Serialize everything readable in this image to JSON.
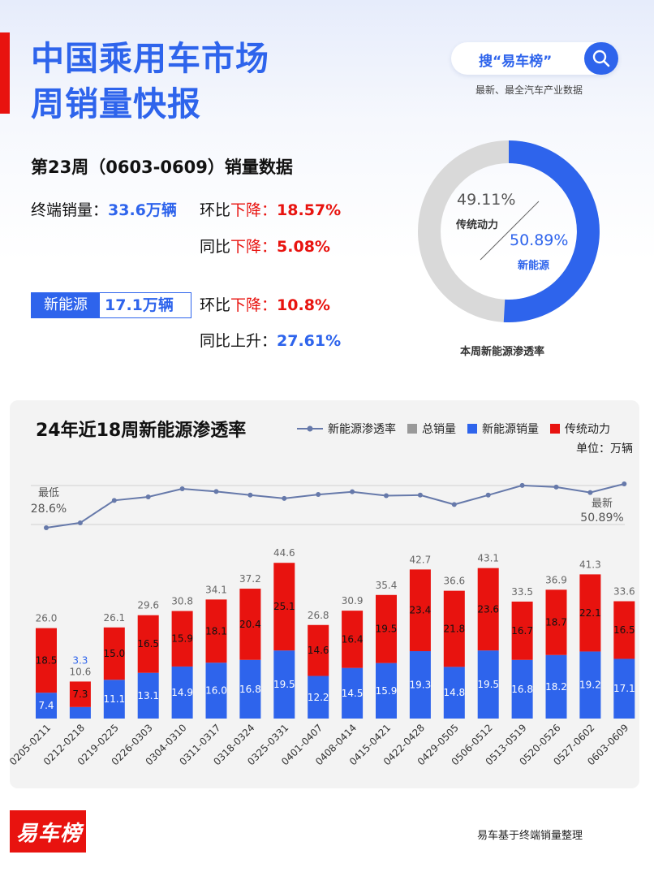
{
  "header": {
    "title_line1": "中国乘用车市场",
    "title_line2": "周销量快报",
    "search_text": "搜“易车榜”",
    "search_icon": "search-icon",
    "tagline": "最新、最全汽车产业数据"
  },
  "summary": {
    "week_title": "第23周（0603-0609）销量数据",
    "total_label": "终端销量：",
    "total_value": "33.6万辆",
    "total_mom_label": "环比",
    "total_mom_dir": "下降：",
    "total_mom_value": "18.57%",
    "total_yoy_label": "同比",
    "total_yoy_dir": "下降：",
    "total_yoy_value": "5.08%",
    "nev_label": "新能源",
    "nev_value": "17.1万辆",
    "nev_mom_label": "环比",
    "nev_mom_dir": "下降：",
    "nev_mom_value": "10.8%",
    "nev_yoy_label": "同比上升：",
    "nev_yoy_value": "27.61%"
  },
  "donut": {
    "traditional_pct": "49.11%",
    "traditional_label": "传统动力",
    "nev_pct": "50.89%",
    "nev_label": "新能源",
    "caption": "本周新能源渗透率",
    "nev_share": 50.89,
    "colors": {
      "nev": "#2e64ec",
      "traditional": "#d9d9d9"
    }
  },
  "chart_data": {
    "type": "bar",
    "title": "24年近18周新能源渗透率",
    "unit": "单位：万辆",
    "legend": [
      "新能源渗透率",
      "总销量",
      "新能源销量",
      "传统动力"
    ],
    "categories": [
      "0205-0211",
      "0212-0218",
      "0219-0225",
      "0226-0303",
      "0304-0310",
      "0311-0317",
      "0318-0324",
      "0325-0331",
      "0401-0407",
      "0408-0414",
      "0415-0421",
      "0422-0428",
      "0429-0505",
      "0506-0512",
      "0513-0519",
      "0520-0526",
      "0527-0602",
      "0603-0609"
    ],
    "series": [
      {
        "name": "总销量",
        "values": [
          26.0,
          10.6,
          26.1,
          29.6,
          30.8,
          34.1,
          37.2,
          44.6,
          26.8,
          30.9,
          35.4,
          42.7,
          36.6,
          43.1,
          33.5,
          36.9,
          41.3,
          33.6
        ]
      },
      {
        "name": "新能源销量",
        "values": [
          7.4,
          3.3,
          11.1,
          13.1,
          14.9,
          16.0,
          16.8,
          19.5,
          12.2,
          14.5,
          15.9,
          19.3,
          14.8,
          19.5,
          16.8,
          18.2,
          19.2,
          17.1
        ]
      },
      {
        "name": "传统动力",
        "values": [
          18.5,
          7.3,
          15.0,
          16.5,
          15.9,
          18.1,
          20.4,
          25.1,
          14.6,
          16.4,
          19.5,
          23.4,
          21.8,
          23.6,
          16.7,
          18.7,
          22.1,
          16.5
        ]
      },
      {
        "name": "新能源渗透率",
        "values": [
          28.6,
          31.1,
          42.5,
          44.3,
          48.4,
          47.0,
          45.2,
          43.5,
          45.5,
          46.9,
          44.9,
          45.2,
          40.4,
          45.2,
          50.1,
          49.3,
          46.5,
          50.89
        ]
      }
    ],
    "annotations": {
      "min_label": "最低",
      "min_value": "28.6%",
      "latest_label": "最新",
      "latest_value": "50.89%"
    },
    "colors": {
      "nev": "#2e64ec",
      "traditional": "#e8130f",
      "total": "#999999",
      "line": "#6679aa"
    }
  },
  "footer": {
    "logo_text": "易车榜",
    "source": "易车基于终端销量整理"
  }
}
